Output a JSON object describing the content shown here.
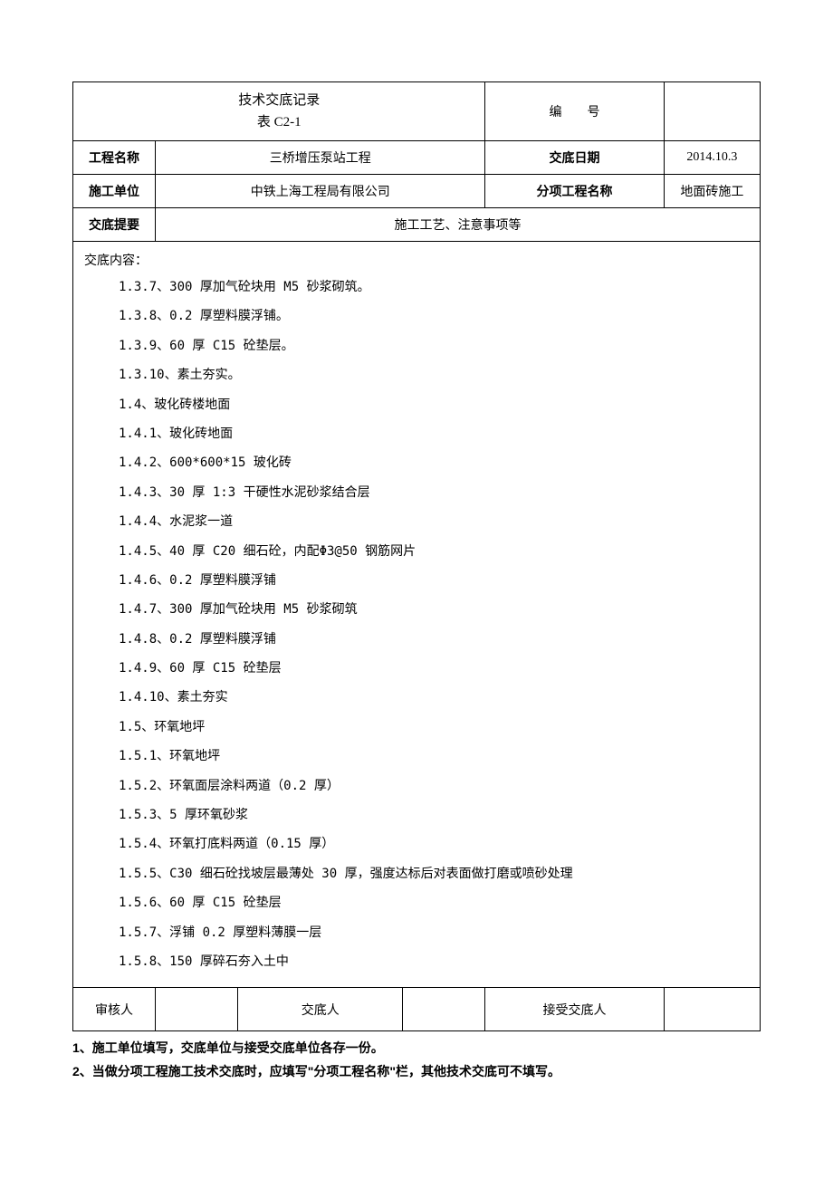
{
  "header": {
    "title_line1": "技术交底记录",
    "title_line2": "表 C2-1",
    "number_label": "编号",
    "number_value": ""
  },
  "meta": {
    "project_name_label": "工程名称",
    "project_name_value": "三桥增压泵站工程",
    "date_label": "交底日期",
    "date_value": "2014.10.3",
    "unit_label": "施工单位",
    "unit_value": "中铁上海工程局有限公司",
    "sub_project_label": "分项工程名称",
    "sub_project_value": "地面砖施工",
    "summary_label": "交底提要",
    "summary_value": "施工工艺、注意事项等"
  },
  "content": {
    "heading": "交底内容：",
    "items": [
      "1.3.7、300 厚加气砼块用 M5 砂浆砌筑。",
      "1.3.8、0.2 厚塑料膜浮铺。",
      "1.3.9、60 厚 C15 砼垫层。",
      "1.3.10、素土夯实。",
      "1.4、玻化砖楼地面",
      "1.4.1、玻化砖地面",
      "1.4.2、600*600*15 玻化砖",
      "1.4.3、30 厚 1:3 干硬性水泥砂浆结合层",
      "1.4.4、水泥浆一道",
      "1.4.5、40 厚 C20 细石砼，内配Φ3@50 钢筋网片",
      "1.4.6、0.2 厚塑料膜浮铺",
      "1.4.7、300 厚加气砼块用 M5 砂浆砌筑",
      "1.4.8、0.2 厚塑料膜浮铺",
      "1.4.9、60 厚 C15 砼垫层",
      "1.4.10、素土夯实",
      "1.5、环氧地坪",
      "1.5.1、环氧地坪",
      "1.5.2、环氧面层涂料两道（0.2 厚）",
      "1.5.3、5 厚环氧砂浆",
      "1.5.4、环氧打底料两道（0.15 厚）",
      "1.5.5、C30 细石砼找坡层最薄处 30 厚，强度达标后对表面做打磨或喷砂处理",
      "1.5.6、60 厚 C15 砼垫层",
      "1.5.7、浮铺 0.2 厚塑料薄膜一层",
      "1.5.8、150 厚碎石夯入土中"
    ]
  },
  "signatures": {
    "reviewer_label": "审核人",
    "reviewer_value": "",
    "disclosed_by_label": "交底人",
    "disclosed_by_value": "",
    "received_by_label": "接受交底人",
    "received_by_value": ""
  },
  "notes": {
    "note1": "1、施工单位填写，交底单位与接受交底单位各存一份。",
    "note2": "2、当做分项工程施工技术交底时，应填写\"分项工程名称\"栏，其他技术交底可不填写。"
  },
  "layout": {
    "col_widths": [
      "12%",
      "12%",
      "12%",
      "12%",
      "12%",
      "12%",
      "14%",
      "14%"
    ]
  }
}
